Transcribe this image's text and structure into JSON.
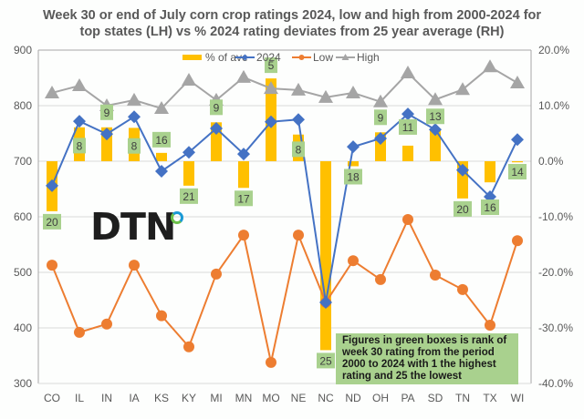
{
  "chart_data": {
    "type": "bar+line",
    "title": "Week 30 or end of July corn crop ratings 2024, low and high from 2000-2024 for top states (LH) vs % 2024 rating deviates from 25 year average (RH)",
    "title_lines": [
      "Week 30 or end of July corn crop ratings 2024, low and high from 2000-2024 for",
      "top states (LH) vs % 2024 rating deviates from 25 year average (RH)"
    ],
    "categories": [
      "CO",
      "IL",
      "IN",
      "IA",
      "KS",
      "KY",
      "MI",
      "MN",
      "MO",
      "NE",
      "NC",
      "ND",
      "OH",
      "PA",
      "SD",
      "TN",
      "TX",
      "WI"
    ],
    "left_axis": {
      "min": 300,
      "max": 900,
      "ticks": [
        300,
        400,
        500,
        600,
        700,
        800,
        900
      ],
      "tick_labels": [
        "300",
        "400",
        "500",
        "600",
        "700",
        "800",
        "900"
      ]
    },
    "right_axis": {
      "min": -40,
      "max": 20,
      "ticks": [
        -40,
        -30,
        -20,
        -10,
        0,
        10,
        20
      ],
      "tick_labels": [
        "-40.0%",
        "-30.0%",
        "-20.0%",
        "-10.0%",
        "0.0%",
        "10.0%",
        "20.0%"
      ]
    },
    "grid": true,
    "legend_position": "top-center",
    "series": [
      {
        "name": "% of ave",
        "kind": "bar",
        "axis": "right",
        "color": "#ffc000",
        "values": [
          -9.0,
          6.1,
          6.1,
          6.0,
          1.5,
          -4.4,
          7.0,
          -4.8,
          14.9,
          4.8,
          -34.0,
          -0.9,
          5.2,
          2.8,
          5.7,
          -6.7,
          -3.8,
          -0.2
        ]
      },
      {
        "name": "2024",
        "kind": "line",
        "marker": "diamond",
        "axis": "left",
        "color": "#4472c4",
        "values": [
          656,
          772,
          749,
          780,
          682,
          716,
          759,
          713,
          771,
          775,
          446,
          726,
          741,
          785,
          757,
          684,
          636,
          739
        ]
      },
      {
        "name": "Low",
        "kind": "line",
        "marker": "circle",
        "axis": "left",
        "color": "#ed7d31",
        "values": [
          513,
          392,
          407,
          513,
          422,
          366,
          497,
          567,
          338,
          567,
          446,
          521,
          487,
          595,
          495,
          469,
          405,
          557
        ]
      },
      {
        "name": "High",
        "kind": "line",
        "marker": "triangle",
        "axis": "left",
        "color": "#a5a5a5",
        "values": [
          823,
          836,
          800,
          810,
          795,
          846,
          810,
          851,
          831,
          828,
          815,
          823,
          807,
          859,
          811,
          829,
          870,
          841
        ]
      }
    ],
    "rank_labels": {
      "description": "Figures in green boxes is rank of week 30 rating from the period 2000 to 2024 with 1 the highest rating and 25 the lowest",
      "color": "#a9d18e",
      "values": [
        "20",
        "8",
        "9",
        "8",
        "16",
        "21",
        "9",
        "17",
        "5",
        "8",
        "25",
        "18",
        "9",
        "11",
        "13",
        "20",
        "16",
        "14"
      ]
    },
    "annotation": "Figures in green boxes is rank of week 30 rating from the period 2000 to 2024 with 1 the highest rating and 25 the lowest"
  },
  "logo": {
    "text": "DTN"
  }
}
